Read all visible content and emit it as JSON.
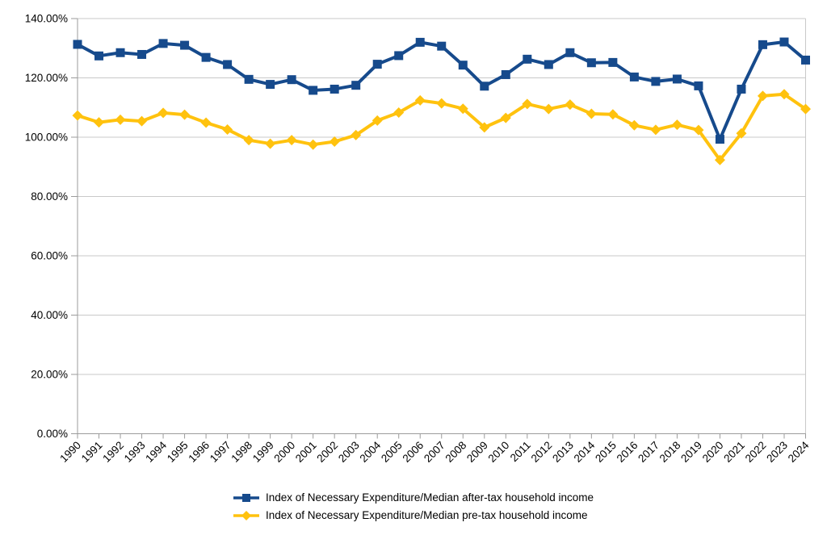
{
  "colors": {
    "background": "#ffffff",
    "gridline": "#c9c9c9",
    "axis": "#9b9b9b",
    "text": "#000000",
    "series_after_tax": "#164a8c",
    "series_pre_tax": "#ffc20e"
  },
  "chart_data": {
    "type": "line",
    "title": "",
    "xlabel": "",
    "ylabel": "",
    "grid": true,
    "legend_position": "bottom",
    "ylim": [
      0,
      140
    ],
    "ytick_step": 20,
    "ytick_labels": [
      "0.00%",
      "20.00%",
      "40.00%",
      "60.00%",
      "80.00%",
      "100.00%",
      "120.00%",
      "140.00%"
    ],
    "categories": [
      "1990",
      "1991",
      "1992",
      "1993",
      "1994",
      "1995",
      "1996",
      "1997",
      "1998",
      "1999",
      "2000",
      "2001",
      "2002",
      "2003",
      "2004",
      "2005",
      "2006",
      "2007",
      "2008",
      "2009",
      "2010",
      "2011",
      "2012",
      "2013",
      "2014",
      "2015",
      "2016",
      "2017",
      "2018",
      "2019",
      "2020",
      "2021",
      "2022",
      "2023",
      "2024"
    ],
    "series": [
      {
        "name": "Index of Necessary Expenditure/Median after-tax household income",
        "color": "#164a8c",
        "marker": "square",
        "values": [
          131.3,
          127.4,
          128.5,
          127.9,
          131.6,
          131.0,
          126.9,
          124.5,
          119.5,
          117.8,
          119.4,
          115.8,
          116.2,
          117.5,
          124.6,
          127.5,
          132.0,
          130.7,
          124.3,
          117.2,
          121.1,
          126.3,
          124.5,
          128.5,
          125.1,
          125.2,
          120.3,
          118.8,
          119.6,
          117.3,
          99.3,
          116.2,
          131.2,
          132.1,
          126.0
        ]
      },
      {
        "name": "Index of Necessary Expenditure/Median pre-tax household income",
        "color": "#ffc20e",
        "marker": "diamond",
        "values": [
          107.3,
          105.0,
          105.9,
          105.4,
          108.2,
          107.6,
          104.9,
          102.6,
          99.0,
          97.8,
          99.0,
          97.5,
          98.5,
          100.7,
          105.6,
          108.3,
          112.4,
          111.4,
          109.6,
          103.3,
          106.5,
          111.2,
          109.5,
          111.0,
          107.9,
          107.7,
          104.0,
          102.5,
          104.2,
          102.4,
          92.3,
          101.3,
          113.9,
          114.5,
          109.5
        ]
      }
    ]
  }
}
